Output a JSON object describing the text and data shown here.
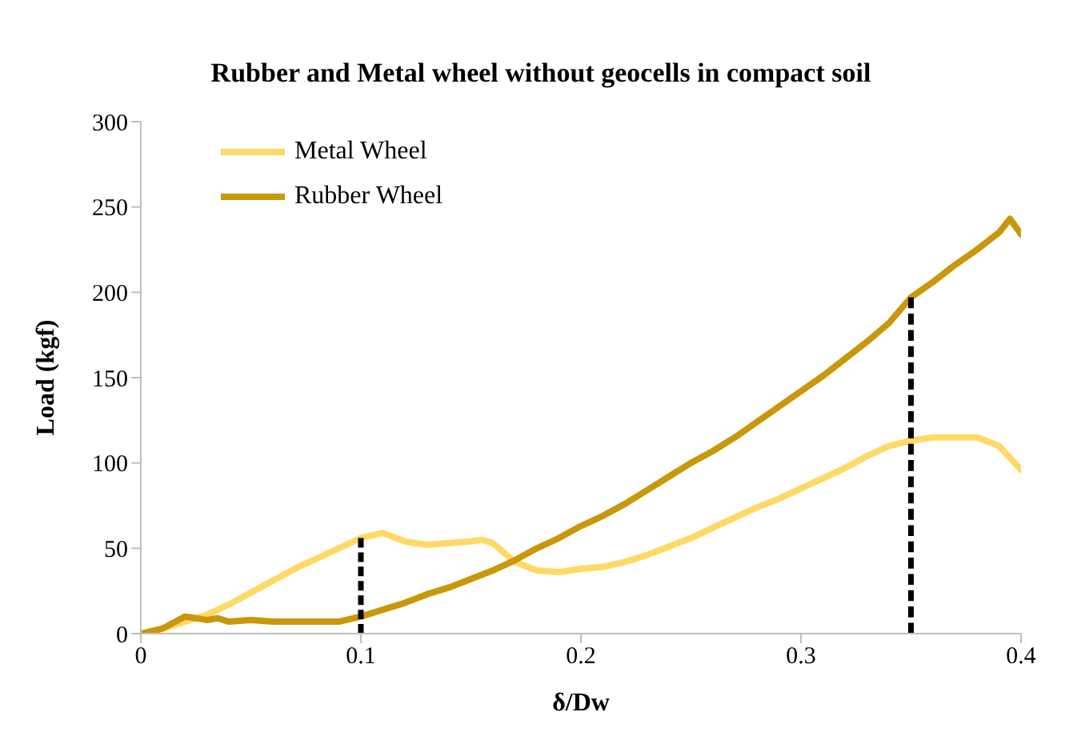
{
  "chart_data": {
    "type": "line",
    "title": "Rubber and Metal wheel without geocells in compact soil",
    "xlabel": "δ/Dw",
    "ylabel": "Load (kgf)",
    "xlim": [
      0,
      0.4
    ],
    "xticks": [
      0,
      0.1,
      0.2,
      0.3,
      0.4
    ],
    "ylim": [
      0,
      300
    ],
    "yticks": [
      0,
      50,
      100,
      150,
      200,
      250,
      300
    ],
    "grid": false,
    "legend": "top left",
    "marker": "none",
    "series": [
      {
        "name": "Metal Wheel",
        "color": "#ffd966",
        "x": [
          0,
          0.01,
          0.02,
          0.03,
          0.04,
          0.05,
          0.06,
          0.07,
          0.08,
          0.09,
          0.1,
          0.11,
          0.12,
          0.13,
          0.14,
          0.15,
          0.155,
          0.16,
          0.17,
          0.18,
          0.19,
          0.2,
          0.21,
          0.22,
          0.23,
          0.24,
          0.25,
          0.26,
          0.27,
          0.28,
          0.29,
          0.3,
          0.31,
          0.32,
          0.33,
          0.34,
          0.35,
          0.36,
          0.37,
          0.38,
          0.39,
          0.4
        ],
        "values": [
          0,
          3,
          7,
          11,
          17,
          24,
          31,
          38,
          44,
          50,
          56,
          59,
          54,
          52,
          53,
          54,
          55,
          53,
          42,
          37,
          36,
          38,
          39,
          42,
          46,
          51,
          56,
          62,
          68,
          74,
          79,
          85,
          91,
          97,
          104,
          110,
          113,
          115,
          115,
          115,
          110,
          96
        ]
      },
      {
        "name": "Rubber Wheel",
        "color": "#c9980a",
        "x": [
          0,
          0.01,
          0.02,
          0.025,
          0.03,
          0.035,
          0.04,
          0.05,
          0.06,
          0.07,
          0.08,
          0.09,
          0.1,
          0.11,
          0.12,
          0.13,
          0.14,
          0.15,
          0.16,
          0.17,
          0.18,
          0.19,
          0.2,
          0.21,
          0.22,
          0.23,
          0.24,
          0.25,
          0.26,
          0.27,
          0.28,
          0.29,
          0.3,
          0.31,
          0.32,
          0.33,
          0.34,
          0.35,
          0.36,
          0.37,
          0.38,
          0.39,
          0.395,
          0.4
        ],
        "values": [
          0,
          3,
          10,
          9,
          8,
          9,
          7,
          8,
          7,
          7,
          7,
          7,
          10,
          14,
          18,
          23,
          27,
          32,
          37,
          43,
          50,
          56,
          63,
          69,
          76,
          84,
          92,
          100,
          107,
          115,
          124,
          133,
          142,
          151,
          161,
          171,
          182,
          197,
          206,
          216,
          225,
          235,
          243,
          234
        ]
      },
      {
        "color": "#000000",
        "line_style": "dashed",
        "x": [
          0.1,
          0.1
        ],
        "values": [
          0,
          56
        ]
      },
      {
        "color": "#000000",
        "line_style": "dashed",
        "x": [
          0.35,
          0.35
        ],
        "values": [
          0,
          197
        ]
      }
    ]
  }
}
